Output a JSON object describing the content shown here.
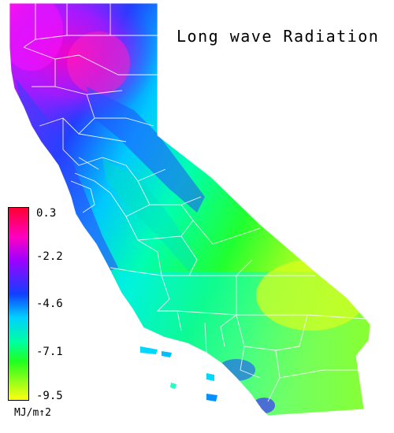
{
  "map": {
    "title": "Long wave Radiation",
    "region": "California",
    "colors": {
      "high": "#ff0050",
      "magenta": "#ff00ff",
      "blue": "#2030ff",
      "cyan": "#00d8ff",
      "green": "#10ff20",
      "yellow": "#e8ff10",
      "border": "#ffffff"
    }
  },
  "legend": {
    "units": "MJ/m↑2",
    "ticks": [
      "0.3",
      "-2.2",
      "-4.6",
      "-7.1",
      "-9.5"
    ]
  }
}
